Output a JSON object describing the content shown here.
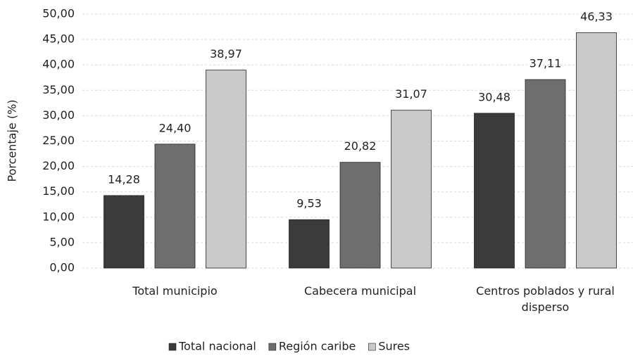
{
  "chart_data": {
    "type": "bar",
    "ylabel": "Porcentaje (%)",
    "categories": [
      "Total municipio",
      "Cabecera municipal",
      "Centros poblados y rural disperso"
    ],
    "series": [
      {
        "name": "Total nacional",
        "color": "#3b3b3b",
        "values": [
          14.28,
          9.53,
          30.48
        ],
        "value_labels": [
          "14,28",
          "9,53",
          "30,48"
        ]
      },
      {
        "name": "Región caribe",
        "color": "#6e6e6e",
        "values": [
          24.4,
          20.82,
          37.11
        ],
        "value_labels": [
          "24,40",
          "20,82",
          "37,11"
        ]
      },
      {
        "name": "Sures",
        "color": "#c9c9c9",
        "values": [
          38.97,
          31.07,
          46.33
        ],
        "value_labels": [
          "38,97",
          "31,07",
          "46,33"
        ]
      }
    ],
    "ylim": [
      0,
      50
    ],
    "yticks": [
      {
        "value": 0,
        "label": "0,00"
      },
      {
        "value": 5,
        "label": "5,00"
      },
      {
        "value": 10,
        "label": "10,00"
      },
      {
        "value": 15,
        "label": "15,00"
      },
      {
        "value": 20,
        "label": "20,00"
      },
      {
        "value": 25,
        "label": "25,00"
      },
      {
        "value": 30,
        "label": "30,00"
      },
      {
        "value": 35,
        "label": "35,00"
      },
      {
        "value": 40,
        "label": "40,00"
      },
      {
        "value": 45,
        "label": "45,00"
      },
      {
        "value": 50,
        "label": "50,00"
      }
    ],
    "grid": true,
    "legend": "bottom"
  }
}
